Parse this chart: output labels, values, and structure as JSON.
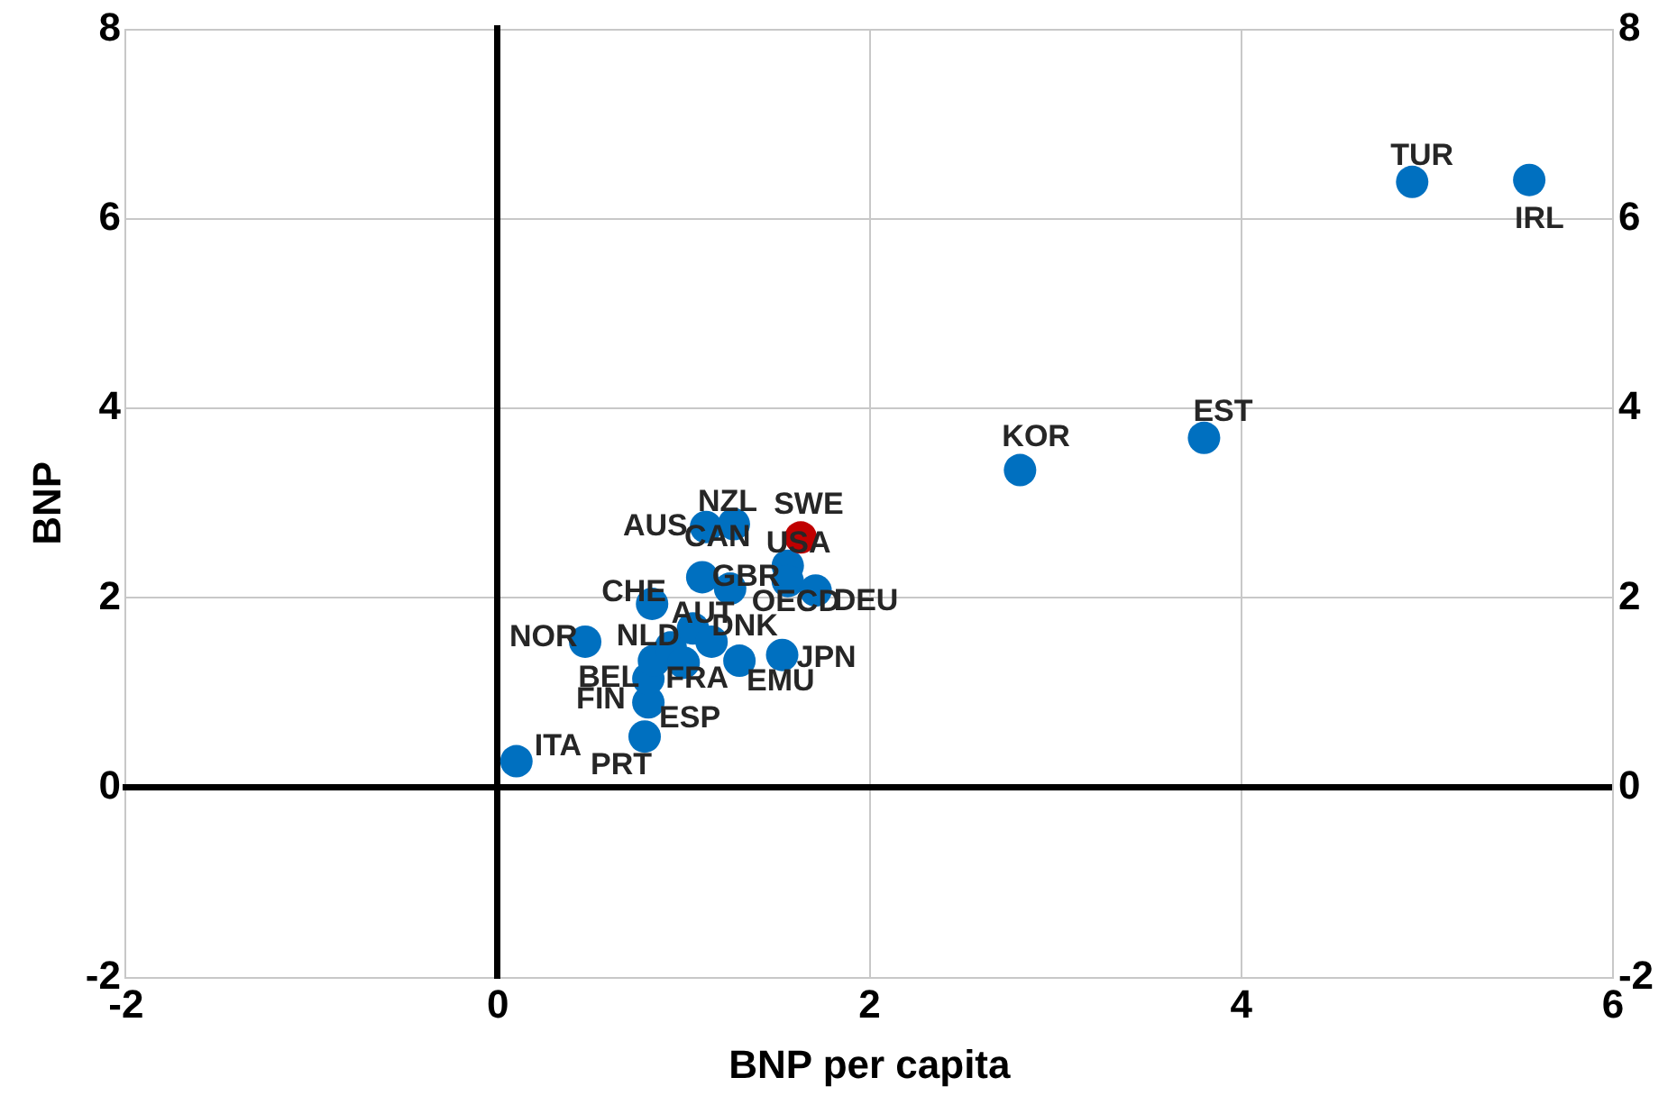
{
  "chart_data": {
    "type": "scatter",
    "xlabel": "BNP per capita",
    "ylabel": "BNP",
    "xlim": [
      -2,
      6
    ],
    "xticks": [
      -2,
      0,
      2,
      4,
      6
    ],
    "ylim": [
      -2,
      8
    ],
    "yticks": [
      -2,
      0,
      2,
      4,
      6,
      8
    ],
    "y2lim": [
      -2,
      8
    ],
    "y2ticks": [
      -2,
      0,
      2,
      4,
      6,
      8
    ],
    "grid": true,
    "legend": false,
    "marker": "circle",
    "data_labels": false,
    "value_labels": [
      "ITA",
      "PRT",
      "ESP",
      "FIN",
      "NOR",
      "CHE",
      "BEL",
      "NLD",
      "AUT",
      "FRA",
      "DNK",
      "EMU",
      "JPN",
      "CAN",
      "GBR",
      "USA",
      "OECD",
      "DEU",
      "SWE",
      "AUS",
      "NZL",
      "KOR",
      "EST",
      "TUR",
      "IRL"
    ],
    "x": [
      0.1,
      0.79,
      0.81,
      0.81,
      0.47,
      0.83,
      0.84,
      0.93,
      1.05,
      1.0,
      1.15,
      1.3,
      1.53,
      1.1,
      1.25,
      1.56,
      1.56,
      1.71,
      1.63,
      1.12,
      1.27,
      2.81,
      3.8,
      4.92,
      5.55
    ],
    "values": [
      0.28,
      0.54,
      0.9,
      1.15,
      1.54,
      1.94,
      1.34,
      1.48,
      1.68,
      1.32,
      1.54,
      1.34,
      1.4,
      2.22,
      2.1,
      2.34,
      2.18,
      2.08,
      2.64,
      2.75,
      2.78,
      3.35,
      3.69,
      6.39,
      6.41
    ],
    "colors": [
      "#0070c0",
      "#0070c0",
      "#0070c0",
      "#0070c0",
      "#0070c0",
      "#0070c0",
      "#0070c0",
      "#0070c0",
      "#0070c0",
      "#0070c0",
      "#0070c0",
      "#0070c0",
      "#0070c0",
      "#0070c0",
      "#0070c0",
      "#0070c0",
      "#0070c0",
      "#0070c0",
      "#c00000",
      "#0070c0",
      "#0070c0",
      "#0070c0",
      "#0070c0",
      "#0070c0",
      "#0070c0"
    ]
  }
}
